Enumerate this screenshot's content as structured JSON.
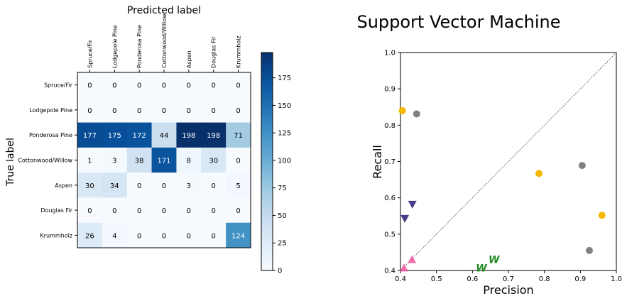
{
  "chart_data": [
    {
      "type": "heatmap",
      "title": "Predicted label",
      "xlabel": "Predicted label",
      "ylabel": "True label",
      "x_categories": [
        "Spruce/Fir",
        "Lodgepole Pine",
        "Ponderosa Pine",
        "Cottonwood/Willow",
        "Aspen",
        "Douglas Fir",
        "Krummholz"
      ],
      "y_categories": [
        "Spruce/Fir",
        "Lodgepole Pine",
        "Ponderosa Pine",
        "Cottonwood/Willow",
        "Aspen",
        "Douglas Fir",
        "Krummholz"
      ],
      "values": [
        [
          0,
          0,
          0,
          0,
          0,
          0,
          0
        ],
        [
          0,
          0,
          0,
          0,
          0,
          0,
          0
        ],
        [
          177,
          175,
          172,
          44,
          198,
          198,
          71
        ],
        [
          1,
          3,
          38,
          171,
          8,
          30,
          0
        ],
        [
          30,
          34,
          0,
          0,
          3,
          0,
          5
        ],
        [
          0,
          0,
          0,
          0,
          0,
          0,
          0
        ],
        [
          26,
          4,
          0,
          0,
          0,
          0,
          124
        ]
      ],
      "colormap": "Blues",
      "colorbar": {
        "min": 0,
        "max": 198,
        "ticks": [
          0,
          25,
          50,
          75,
          100,
          125,
          150,
          175
        ]
      }
    },
    {
      "type": "scatter",
      "title": "Support Vector Machine",
      "xlabel": "Precision",
      "ylabel": "Recall",
      "xlim": [
        0.4,
        1.0
      ],
      "ylim": [
        0.4,
        1.0
      ],
      "xticks": [
        "0.4",
        "0.5",
        "0.6",
        "0.7",
        "0.8",
        "0.9",
        "1.0"
      ],
      "yticks": [
        "0.4",
        "0.5",
        "0.6",
        "0.7",
        "0.8",
        "0.9",
        "1.0"
      ],
      "diagonal": true,
      "series": [
        {
          "marker": "circle",
          "color": "#f5b800",
          "points": [
            [
              0.405,
              0.84
            ],
            [
              0.785,
              0.667
            ],
            [
              0.96,
              0.552
            ]
          ]
        },
        {
          "marker": "circle",
          "color": "#808080",
          "points": [
            [
              0.445,
              0.831
            ],
            [
              0.905,
              0.689
            ],
            [
              0.925,
              0.455
            ]
          ]
        },
        {
          "marker": "triangle-down",
          "color": "#483d8b",
          "points": [
            [
              0.433,
              0.582
            ],
            [
              0.412,
              0.543
            ]
          ]
        },
        {
          "marker": "triangle-up",
          "color": "#f0589e",
          "points": [
            [
              0.432,
              0.43
            ],
            [
              0.41,
              0.407
            ]
          ]
        },
        {
          "marker": "W",
          "color": "#228b22",
          "points": [
            [
              0.66,
              0.43
            ],
            [
              0.625,
              0.407
            ]
          ]
        }
      ]
    }
  ]
}
